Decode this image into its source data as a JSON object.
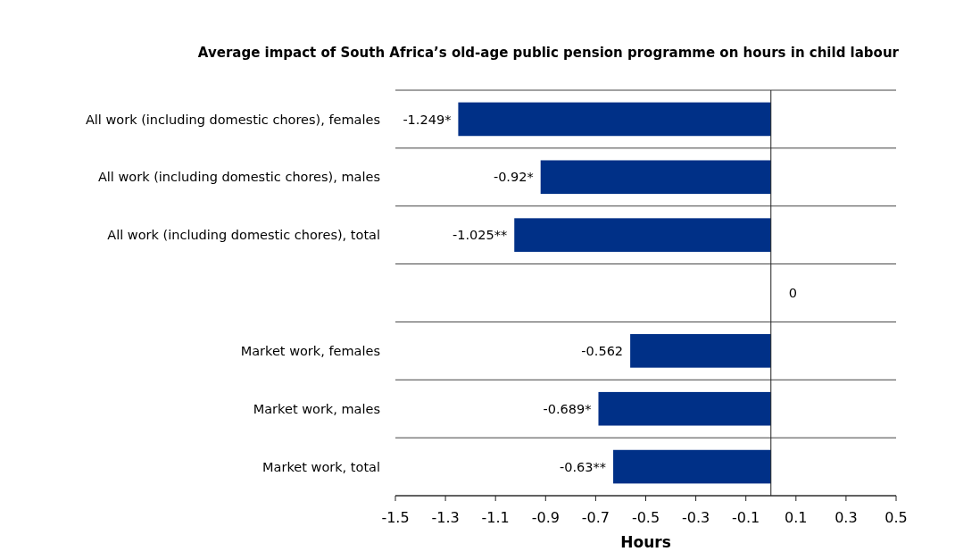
{
  "chart_data": {
    "type": "bar",
    "orientation": "horizontal",
    "title": "Average impact of South Africa’s old-age public pension programme on hours in child labour",
    "xlabel": "Hours",
    "categories": [
      "All work (including domestic chores), females",
      "All work (including domestic chores), males",
      "All work (including domestic chores), total",
      null,
      "Market work, females",
      "Market work, males",
      "Market work, total"
    ],
    "values": [
      -1.249,
      -0.92,
      -1.025,
      0,
      -0.562,
      -0.689,
      -0.63
    ],
    "value_labels": [
      "-1.249*",
      "-0.92*",
      "-1.025**",
      "0",
      "-0.562",
      "-0.689*",
      "-0.63**"
    ],
    "color": "#003087",
    "xlim": [
      -1.5,
      0.5
    ],
    "xticks": [
      -1.5,
      -1.3,
      -1.1,
      -0.9,
      -0.7,
      -0.5,
      -0.3,
      -0.1,
      0.1,
      0.3,
      0.5
    ],
    "grid": "y"
  }
}
